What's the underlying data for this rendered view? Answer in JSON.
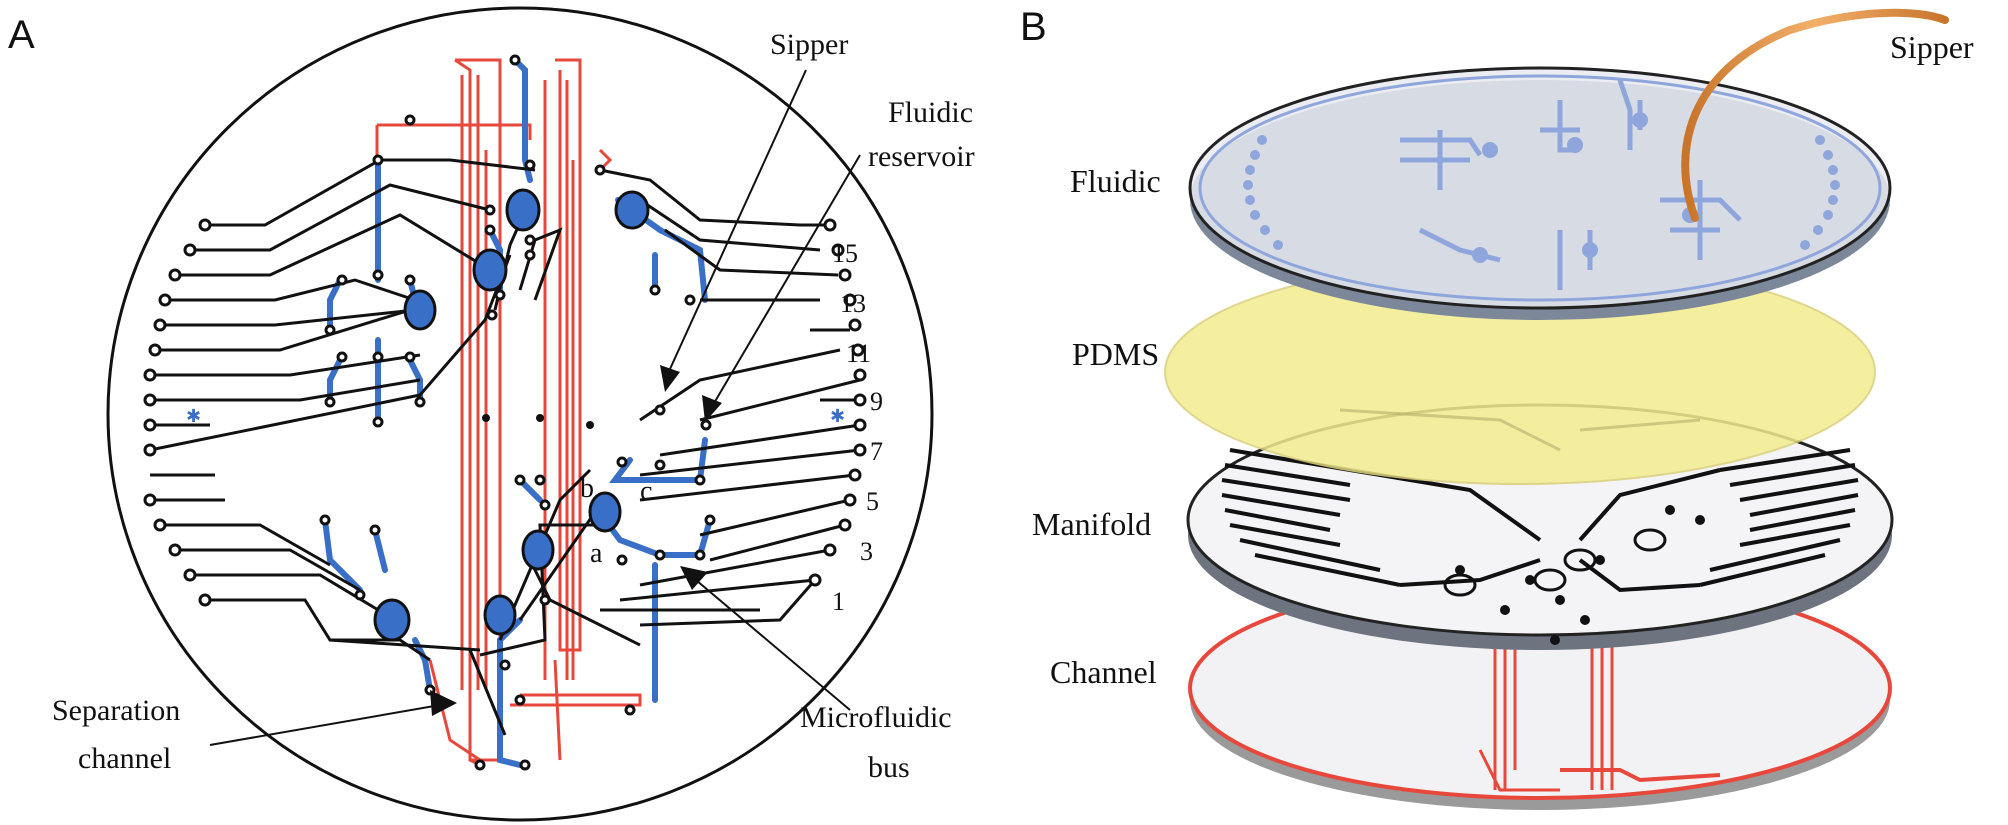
{
  "panels": {
    "a": "A",
    "b": "B"
  },
  "panel_a": {
    "sipper": "Sipper",
    "fluidic_reservoir": [
      "Fluidic",
      "reservoir"
    ],
    "separation_channel": [
      "Separation",
      "channel"
    ],
    "microfluidic_bus": [
      "Microfluidic",
      "bus"
    ],
    "port_numbers": [
      "15",
      "13",
      "11",
      "9",
      "7",
      "5",
      "3",
      "1"
    ],
    "node_labels": [
      "a",
      "b",
      "c"
    ]
  },
  "panel_b": {
    "sipper": "Sipper",
    "layers": [
      "Fluidic",
      "PDMS",
      "Manifold",
      "Channel"
    ]
  },
  "colors": {
    "manifold": "#111111",
    "fluidic": "#3a6fc7",
    "channel": "#e8483c",
    "pdms": "#f3ec8f",
    "sipper_tube": "#e79a45"
  }
}
